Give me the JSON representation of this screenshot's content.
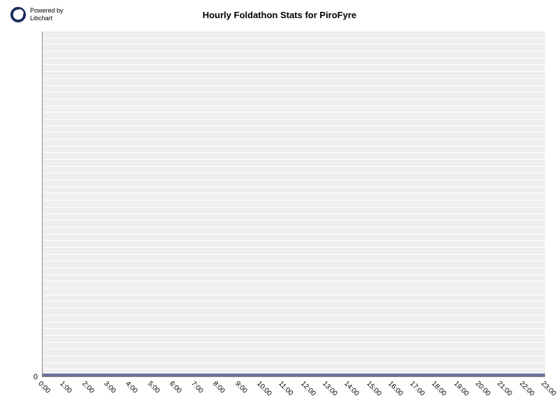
{
  "branding": {
    "powered_line1": "Powered by",
    "powered_line2": "Libchart",
    "logo_color": "#1a2b5c"
  },
  "chart": {
    "type": "bar",
    "title": "Hourly Foldathon Stats for PiroFyre",
    "title_fontsize": 13,
    "title_fontweight": "bold",
    "background_color": "#ffffff",
    "plot_bg_color": "#efefef",
    "grid_color": "#ffffff",
    "grid_line_count": 50,
    "axis_color": "#888888",
    "text_color": "#000000",
    "baseline_bar_color": "#6b6f9e",
    "baseline_bar_height": 4,
    "ylim": [
      0,
      1
    ],
    "yticks": [
      {
        "value": 0,
        "label": "0",
        "pos_pct": 100
      }
    ],
    "x_categories": [
      "0:00",
      "1:00",
      "2:00",
      "3:00",
      "4:00",
      "5:00",
      "6:00",
      "7:00",
      "8:00",
      "9:00",
      "10:00",
      "11:00",
      "12:00",
      "13:00",
      "14:00",
      "15:00",
      "16:00",
      "17:00",
      "18:00",
      "19:00",
      "20:00",
      "21:00",
      "22:00",
      "23:00"
    ],
    "values": [
      0,
      0,
      0,
      0,
      0,
      0,
      0,
      0,
      0,
      0,
      0,
      0,
      0,
      0,
      0,
      0,
      0,
      0,
      0,
      0,
      0,
      0,
      0,
      0
    ],
    "x_label_fontsize": 10,
    "x_label_rotation": 45
  }
}
